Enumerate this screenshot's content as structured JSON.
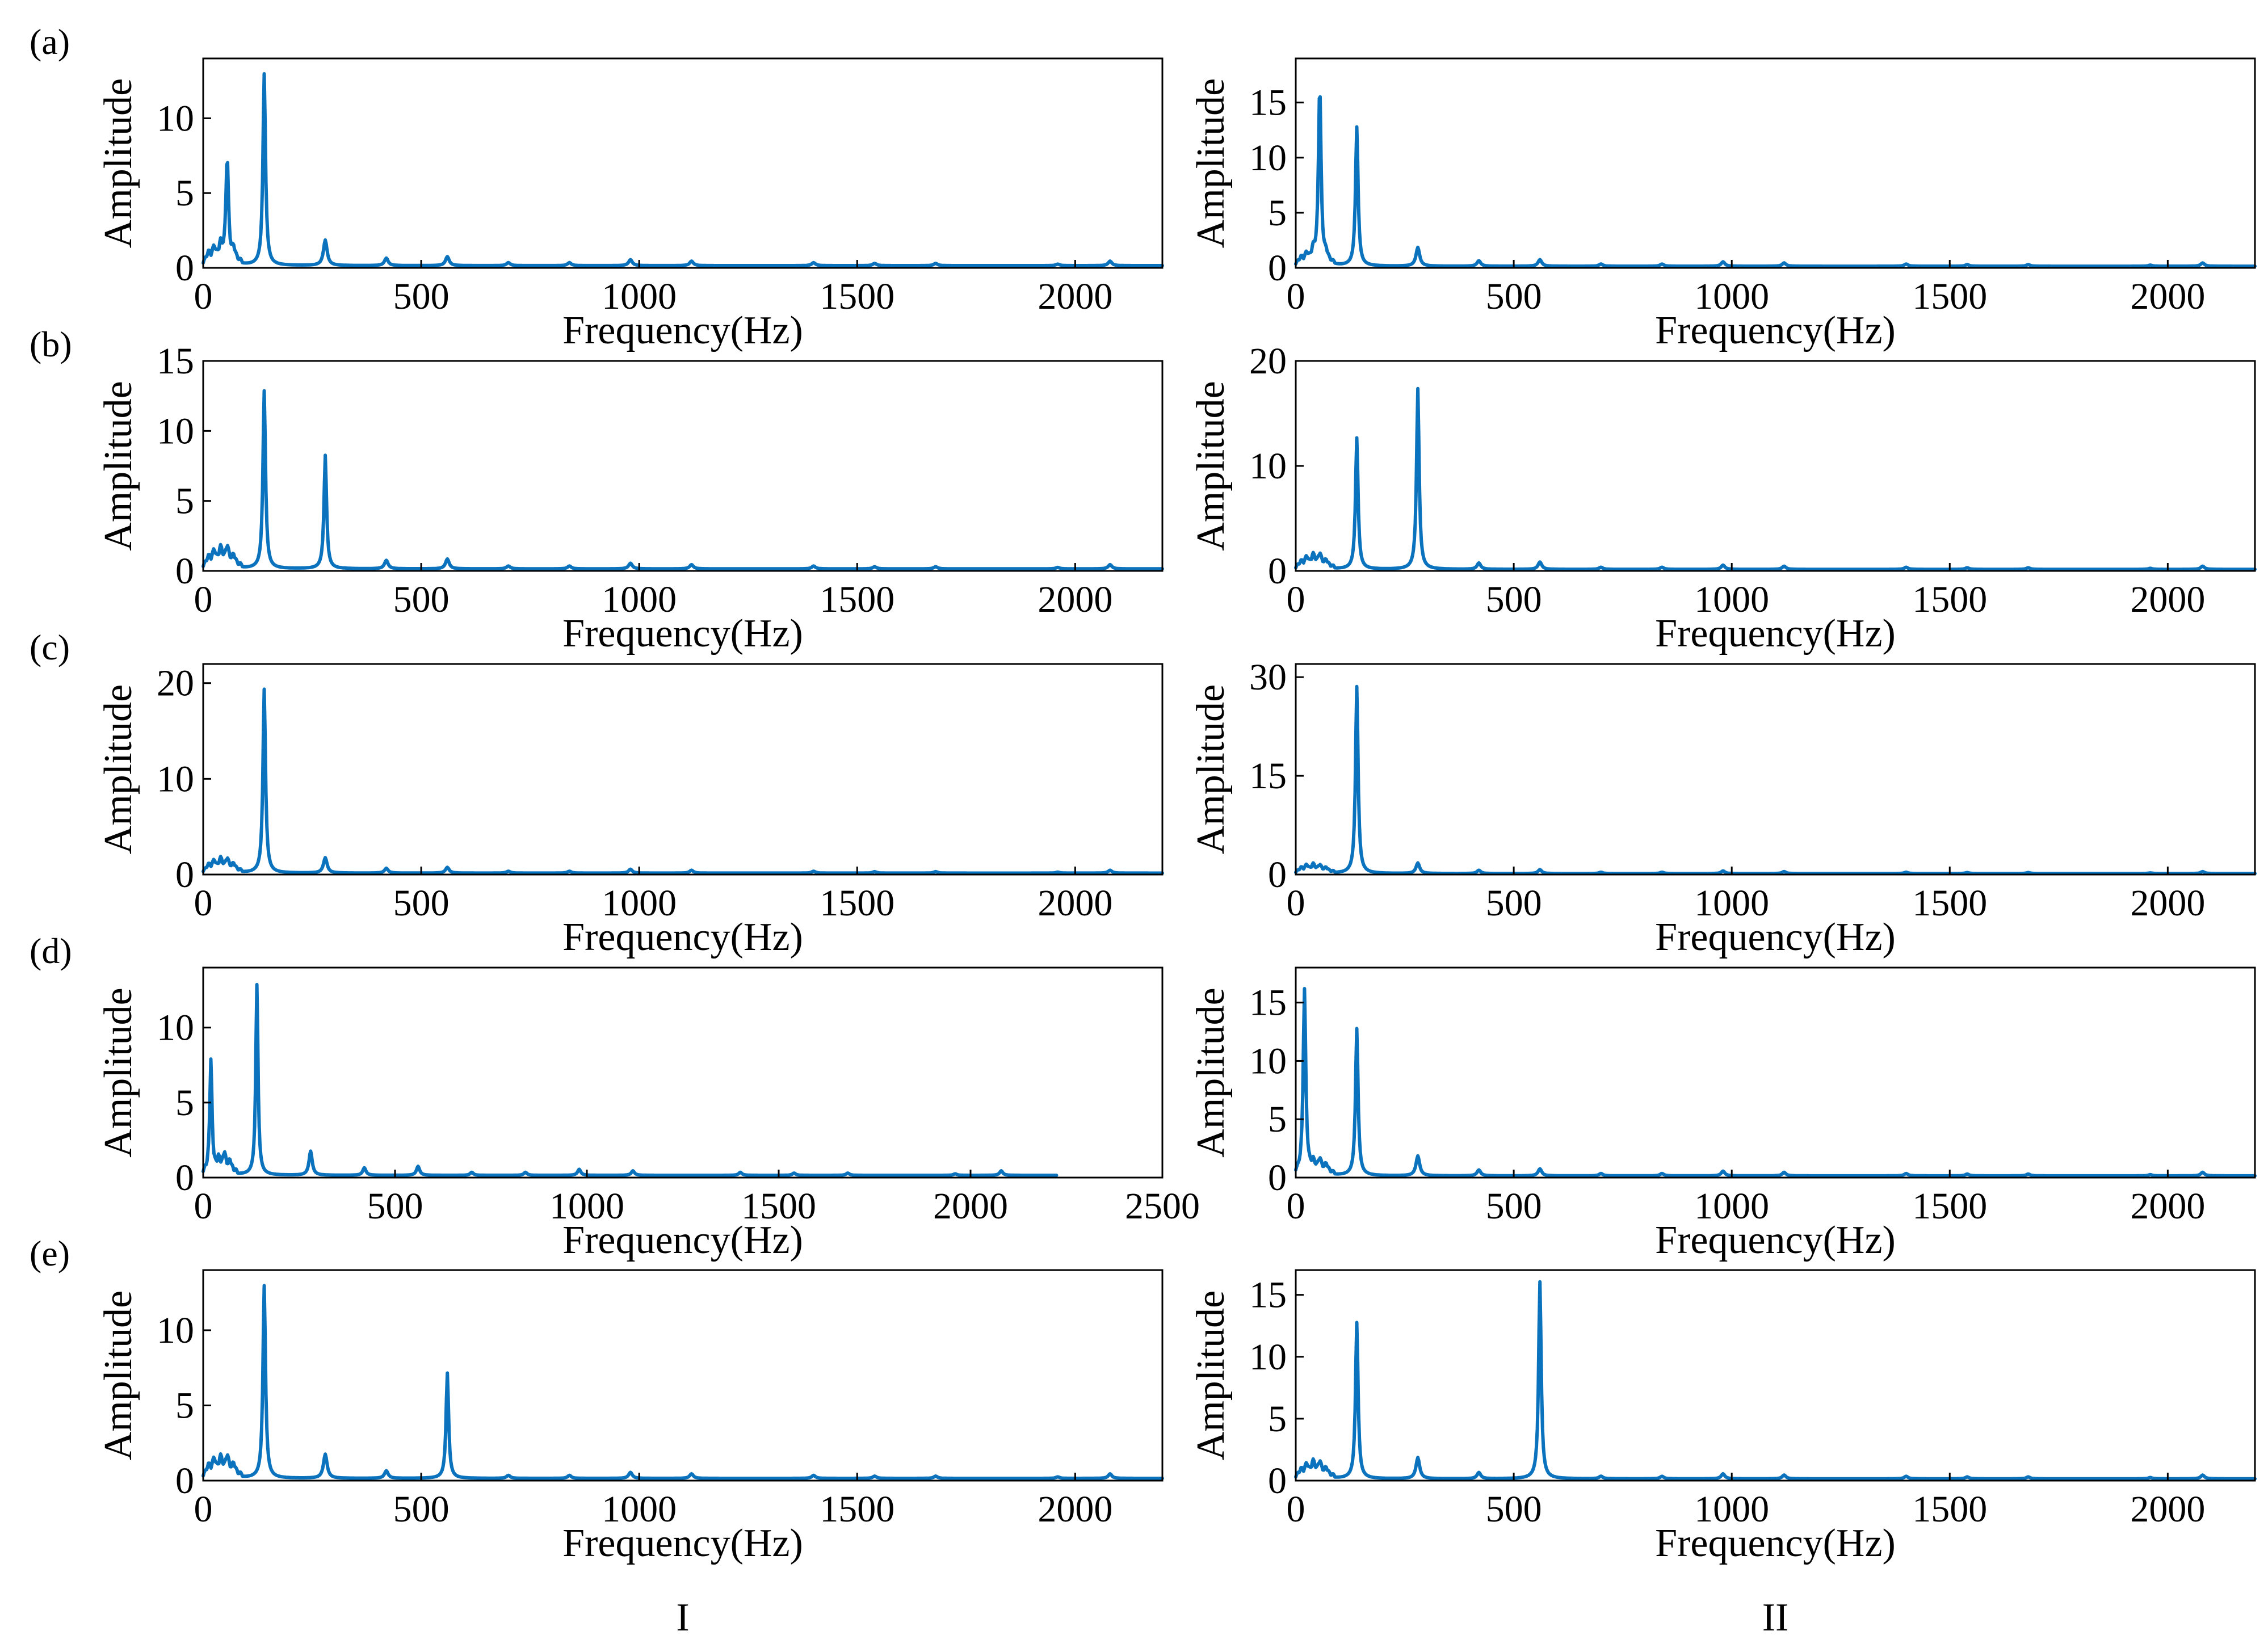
{
  "figure": {
    "column_labels": [
      "I",
      "II"
    ],
    "row_labels": [
      "(a)",
      "(b)",
      "(c)",
      "(d)",
      "(e)"
    ]
  },
  "chart_data": [
    {
      "id": "a-I",
      "type": "line",
      "row": 0,
      "col": 0,
      "xlabel": "Frequency(Hz)",
      "ylabel": "Amplitude",
      "xlim": [
        0,
        2200
      ],
      "ylim": [
        0,
        14
      ],
      "xticks": [
        0,
        500,
        1000,
        1500,
        2000
      ],
      "yticks": [
        0,
        5,
        10
      ],
      "series": [
        {
          "color": "#0b72bd",
          "baseline": 0.15,
          "peaks": [
            [
              12,
              0.6
            ],
            [
              25,
              0.9
            ],
            [
              40,
              1.1
            ],
            [
              55,
              7.0
            ],
            [
              70,
              0.8
            ],
            [
              140,
              12.8
            ],
            [
              280,
              1.7
            ],
            [
              420,
              0.5
            ],
            [
              560,
              0.6
            ],
            [
              700,
              0.2
            ],
            [
              840,
              0.2
            ],
            [
              980,
              0.4
            ],
            [
              1120,
              0.3
            ],
            [
              1400,
              0.2
            ],
            [
              1540,
              0.15
            ],
            [
              1680,
              0.15
            ],
            [
              1960,
              0.1
            ],
            [
              2080,
              0.3
            ]
          ]
        }
      ]
    },
    {
      "id": "a-II",
      "type": "line",
      "row": 0,
      "col": 1,
      "xlabel": "Frequency(Hz)",
      "ylabel": "Amplitude",
      "xlim": [
        0,
        2200
      ],
      "ylim": [
        0,
        19
      ],
      "xticks": [
        0,
        500,
        1000,
        1500,
        2000
      ],
      "yticks": [
        0,
        5,
        10,
        15
      ],
      "series": [
        {
          "color": "#0b72bd",
          "baseline": 0.15,
          "peaks": [
            [
              12,
              0.5
            ],
            [
              25,
              0.8
            ],
            [
              40,
              1.0
            ],
            [
              55,
              16.2
            ],
            [
              70,
              0.7
            ],
            [
              140,
              12.6
            ],
            [
              280,
              1.7
            ],
            [
              420,
              0.5
            ],
            [
              560,
              0.6
            ],
            [
              700,
              0.2
            ],
            [
              840,
              0.2
            ],
            [
              980,
              0.4
            ],
            [
              1120,
              0.3
            ],
            [
              1400,
              0.2
            ],
            [
              1540,
              0.15
            ],
            [
              1680,
              0.15
            ],
            [
              1960,
              0.1
            ],
            [
              2080,
              0.3
            ]
          ]
        }
      ]
    },
    {
      "id": "b-I",
      "type": "line",
      "row": 1,
      "col": 0,
      "xlabel": "Frequency(Hz)",
      "ylabel": "Amplitude",
      "xlim": [
        0,
        2200
      ],
      "ylim": [
        0,
        15
      ],
      "xticks": [
        0,
        500,
        1000,
        1500,
        2000
      ],
      "yticks": [
        0,
        5,
        10,
        15
      ],
      "series": [
        {
          "color": "#0b72bd",
          "baseline": 0.15,
          "peaks": [
            [
              12,
              0.6
            ],
            [
              25,
              1.0
            ],
            [
              40,
              1.2
            ],
            [
              55,
              1.3
            ],
            [
              70,
              0.7
            ],
            [
              140,
              12.7
            ],
            [
              280,
              8.1
            ],
            [
              420,
              0.6
            ],
            [
              560,
              0.7
            ],
            [
              700,
              0.2
            ],
            [
              840,
              0.2
            ],
            [
              980,
              0.4
            ],
            [
              1120,
              0.3
            ],
            [
              1400,
              0.2
            ],
            [
              1540,
              0.15
            ],
            [
              1680,
              0.15
            ],
            [
              1960,
              0.1
            ],
            [
              2080,
              0.3
            ]
          ]
        }
      ]
    },
    {
      "id": "b-II",
      "type": "line",
      "row": 1,
      "col": 1,
      "xlabel": "Frequency(Hz)",
      "ylabel": "Amplitude",
      "xlim": [
        0,
        2200
      ],
      "ylim": [
        0,
        20
      ],
      "xticks": [
        0,
        500,
        1000,
        1500,
        2000
      ],
      "yticks": [
        0,
        10,
        20
      ],
      "series": [
        {
          "color": "#0b72bd",
          "baseline": 0.15,
          "peaks": [
            [
              12,
              0.5
            ],
            [
              25,
              0.9
            ],
            [
              40,
              1.1
            ],
            [
              55,
              1.2
            ],
            [
              70,
              0.6
            ],
            [
              140,
              12.5
            ],
            [
              280,
              17.2
            ],
            [
              420,
              0.6
            ],
            [
              560,
              0.7
            ],
            [
              700,
              0.2
            ],
            [
              840,
              0.2
            ],
            [
              980,
              0.4
            ],
            [
              1120,
              0.3
            ],
            [
              1400,
              0.2
            ],
            [
              1540,
              0.15
            ],
            [
              1680,
              0.15
            ],
            [
              1960,
              0.1
            ],
            [
              2080,
              0.3
            ]
          ]
        }
      ]
    },
    {
      "id": "c-I",
      "type": "line",
      "row": 2,
      "col": 0,
      "xlabel": "Frequency(Hz)",
      "ylabel": "Amplitude",
      "xlim": [
        0,
        2200
      ],
      "ylim": [
        0,
        22
      ],
      "xticks": [
        0,
        500,
        1000,
        1500,
        2000
      ],
      "yticks": [
        0,
        10,
        20
      ],
      "series": [
        {
          "color": "#0b72bd",
          "baseline": 0.15,
          "peaks": [
            [
              12,
              0.6
            ],
            [
              25,
              1.0
            ],
            [
              40,
              1.2
            ],
            [
              55,
              1.2
            ],
            [
              70,
              0.7
            ],
            [
              140,
              19.2
            ],
            [
              280,
              1.6
            ],
            [
              420,
              0.5
            ],
            [
              560,
              0.6
            ],
            [
              700,
              0.2
            ],
            [
              840,
              0.2
            ],
            [
              980,
              0.4
            ],
            [
              1120,
              0.3
            ],
            [
              1400,
              0.2
            ],
            [
              1540,
              0.15
            ],
            [
              1680,
              0.15
            ],
            [
              1960,
              0.1
            ],
            [
              2080,
              0.3
            ]
          ]
        }
      ]
    },
    {
      "id": "c-II",
      "type": "line",
      "row": 2,
      "col": 1,
      "xlabel": "Frequency(Hz)",
      "ylabel": "Amplitude",
      "xlim": [
        0,
        2200
      ],
      "ylim": [
        0,
        32
      ],
      "xticks": [
        0,
        500,
        1000,
        1500,
        2000
      ],
      "yticks": [
        0,
        15,
        30
      ],
      "series": [
        {
          "color": "#0b72bd",
          "baseline": 0.15,
          "peaks": [
            [
              12,
              0.6
            ],
            [
              25,
              1.0
            ],
            [
              40,
              1.1
            ],
            [
              55,
              1.0
            ],
            [
              70,
              0.6
            ],
            [
              140,
              28.4
            ],
            [
              280,
              1.6
            ],
            [
              420,
              0.5
            ],
            [
              560,
              0.6
            ],
            [
              700,
              0.2
            ],
            [
              840,
              0.2
            ],
            [
              980,
              0.4
            ],
            [
              1120,
              0.3
            ],
            [
              1400,
              0.2
            ],
            [
              1540,
              0.15
            ],
            [
              1680,
              0.15
            ],
            [
              1960,
              0.1
            ],
            [
              2080,
              0.3
            ]
          ]
        }
      ]
    },
    {
      "id": "d-I",
      "type": "line",
      "row": 3,
      "col": 0,
      "xlabel": "Frequency(Hz)",
      "ylabel": "Amplitude",
      "xlim": [
        0,
        2500
      ],
      "ylim": [
        0,
        14
      ],
      "xticks": [
        0,
        500,
        1000,
        1500,
        2000,
        2500
      ],
      "yticks": [
        0,
        5,
        10
      ],
      "series": [
        {
          "color": "#0b72bd",
          "baseline": 0.15,
          "x_end": 2225,
          "peaks": [
            [
              20,
              7.5
            ],
            [
              40,
              0.8
            ],
            [
              55,
              1.2
            ],
            [
              70,
              0.7
            ],
            [
              140,
              12.7
            ],
            [
              280,
              1.6
            ],
            [
              420,
              0.5
            ],
            [
              560,
              0.6
            ],
            [
              700,
              0.2
            ],
            [
              840,
              0.2
            ],
            [
              980,
              0.4
            ],
            [
              1120,
              0.3
            ],
            [
              1400,
              0.2
            ],
            [
              1540,
              0.15
            ],
            [
              1680,
              0.15
            ],
            [
              1960,
              0.1
            ],
            [
              2080,
              0.3
            ]
          ]
        }
      ]
    },
    {
      "id": "d-II",
      "type": "line",
      "row": 3,
      "col": 1,
      "xlabel": "Frequency(Hz)",
      "ylabel": "Amplitude",
      "xlim": [
        0,
        2200
      ],
      "ylim": [
        0,
        18
      ],
      "xticks": [
        0,
        500,
        1000,
        1500,
        2000
      ],
      "yticks": [
        0,
        5,
        10,
        15
      ],
      "series": [
        {
          "color": "#0b72bd",
          "baseline": 0.15,
          "peaks": [
            [
              20,
              15.8
            ],
            [
              40,
              0.8
            ],
            [
              55,
              1.1
            ],
            [
              70,
              0.7
            ],
            [
              140,
              12.6
            ],
            [
              280,
              1.7
            ],
            [
              420,
              0.5
            ],
            [
              560,
              0.6
            ],
            [
              700,
              0.2
            ],
            [
              840,
              0.2
            ],
            [
              980,
              0.4
            ],
            [
              1120,
              0.3
            ],
            [
              1400,
              0.2
            ],
            [
              1540,
              0.15
            ],
            [
              1680,
              0.15
            ],
            [
              1960,
              0.1
            ],
            [
              2080,
              0.3
            ]
          ]
        }
      ]
    },
    {
      "id": "e-I",
      "type": "line",
      "row": 4,
      "col": 0,
      "xlabel": "Frequency(Hz)",
      "ylabel": "Amplitude",
      "xlim": [
        0,
        2200
      ],
      "ylim": [
        0,
        14
      ],
      "xticks": [
        0,
        500,
        1000,
        1500,
        2000
      ],
      "yticks": [
        0,
        5,
        10
      ],
      "series": [
        {
          "color": "#0b72bd",
          "baseline": 0.15,
          "peaks": [
            [
              12,
              0.6
            ],
            [
              25,
              1.0
            ],
            [
              40,
              1.1
            ],
            [
              55,
              1.2
            ],
            [
              70,
              0.7
            ],
            [
              140,
              12.8
            ],
            [
              280,
              1.6
            ],
            [
              420,
              0.5
            ],
            [
              560,
              7.0
            ],
            [
              700,
              0.2
            ],
            [
              840,
              0.2
            ],
            [
              980,
              0.4
            ],
            [
              1120,
              0.3
            ],
            [
              1400,
              0.2
            ],
            [
              1540,
              0.15
            ],
            [
              1680,
              0.15
            ],
            [
              1960,
              0.1
            ],
            [
              2080,
              0.3
            ]
          ]
        }
      ]
    },
    {
      "id": "e-II",
      "type": "line",
      "row": 4,
      "col": 1,
      "xlabel": "Frequency(Hz)",
      "ylabel": "Amplitude",
      "xlim": [
        0,
        2200
      ],
      "ylim": [
        0,
        17
      ],
      "xticks": [
        0,
        500,
        1000,
        1500,
        2000
      ],
      "yticks": [
        0,
        5,
        10,
        15
      ],
      "series": [
        {
          "color": "#0b72bd",
          "baseline": 0.15,
          "peaks": [
            [
              12,
              0.5
            ],
            [
              25,
              0.9
            ],
            [
              40,
              1.1
            ],
            [
              55,
              1.1
            ],
            [
              70,
              0.6
            ],
            [
              140,
              12.6
            ],
            [
              280,
              1.7
            ],
            [
              420,
              0.5
            ],
            [
              560,
              15.9
            ],
            [
              700,
              0.2
            ],
            [
              840,
              0.2
            ],
            [
              980,
              0.4
            ],
            [
              1120,
              0.3
            ],
            [
              1400,
              0.2
            ],
            [
              1540,
              0.15
            ],
            [
              1680,
              0.15
            ],
            [
              1960,
              0.1
            ],
            [
              2080,
              0.3
            ]
          ]
        }
      ]
    }
  ]
}
